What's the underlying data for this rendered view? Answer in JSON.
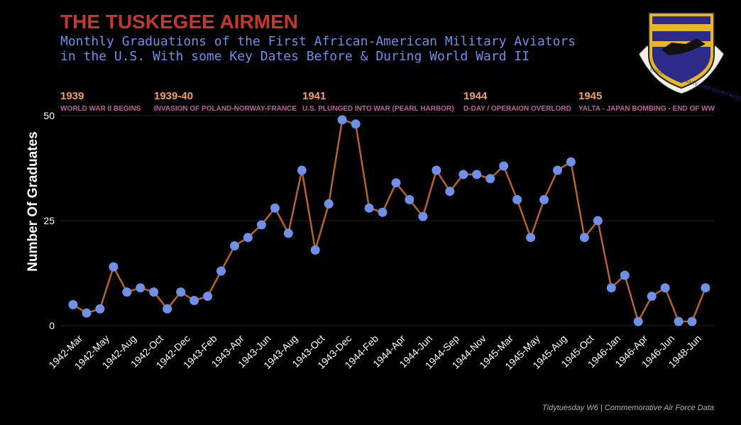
{
  "chart_data": {
    "type": "line",
    "title": "THE TUSKEGEE AIRMEN",
    "subtitle_lines": [
      "Monthly Graduations of the First African-American Military Aviators",
      "in the U.S. With some Key Dates Before & During World Ward II"
    ],
    "ylabel": "Number Of Graduates",
    "xlabel": "",
    "ylim": [
      0,
      50
    ],
    "yticks": [
      "0",
      "25",
      "50"
    ],
    "grid": true,
    "x_labels": [
      "1942-Mar",
      "1942-May",
      "1942-Aug",
      "1942-Oct",
      "1942-Dec",
      "1943-Feb",
      "1943-Apr",
      "1943-Jun",
      "1943-Aug",
      "1943-Oct",
      "1943-Dec",
      "1944-Feb",
      "1944-Apr",
      "1944-Jun",
      "1944-Sep",
      "1944-Nov",
      "1945-Mar",
      "1945-May",
      "1945-Aug",
      "1945-Oct",
      "1946-Jan",
      "1946-Apr",
      "1946-Jun",
      "1948-Jun"
    ],
    "values": [
      5,
      3,
      4,
      14,
      8,
      9,
      8,
      4,
      8,
      6,
      7,
      13,
      19,
      21,
      24,
      28,
      22,
      37,
      18,
      29,
      49,
      48,
      28,
      27,
      34,
      30,
      26,
      37,
      32,
      36,
      36,
      35,
      38,
      30,
      21,
      30,
      37,
      39,
      21,
      25,
      9,
      12,
      1,
      7,
      9,
      1,
      1,
      9
    ],
    "events": [
      {
        "year": "1939",
        "text": "WORLD WAR II BEGINS"
      },
      {
        "year": "1939-40",
        "text": "INVASION OF POLAND-NORWAY-FRANCE"
      },
      {
        "year": "1941",
        "text": "U.S. PLUNGED INTO WAR (PEARL HARBOR)"
      },
      {
        "year": "1944",
        "text": "D-DAY / OPERAION OVERLORD"
      },
      {
        "year": "1945",
        "text": "YALTA  - JAPAN BOMBING  - END OF WW"
      }
    ],
    "caption": "Tidytuesday W6 | Commemorative Air Force Data",
    "colors": {
      "line": "#b5632a",
      "points": "#6f8fe8",
      "title": "#c0392b"
    }
  },
  "logo": {
    "icon": "332nd-expeditionary-operations-wing-emblem",
    "text": "332d EXPEDITIONARY OPERATIONS WING"
  }
}
